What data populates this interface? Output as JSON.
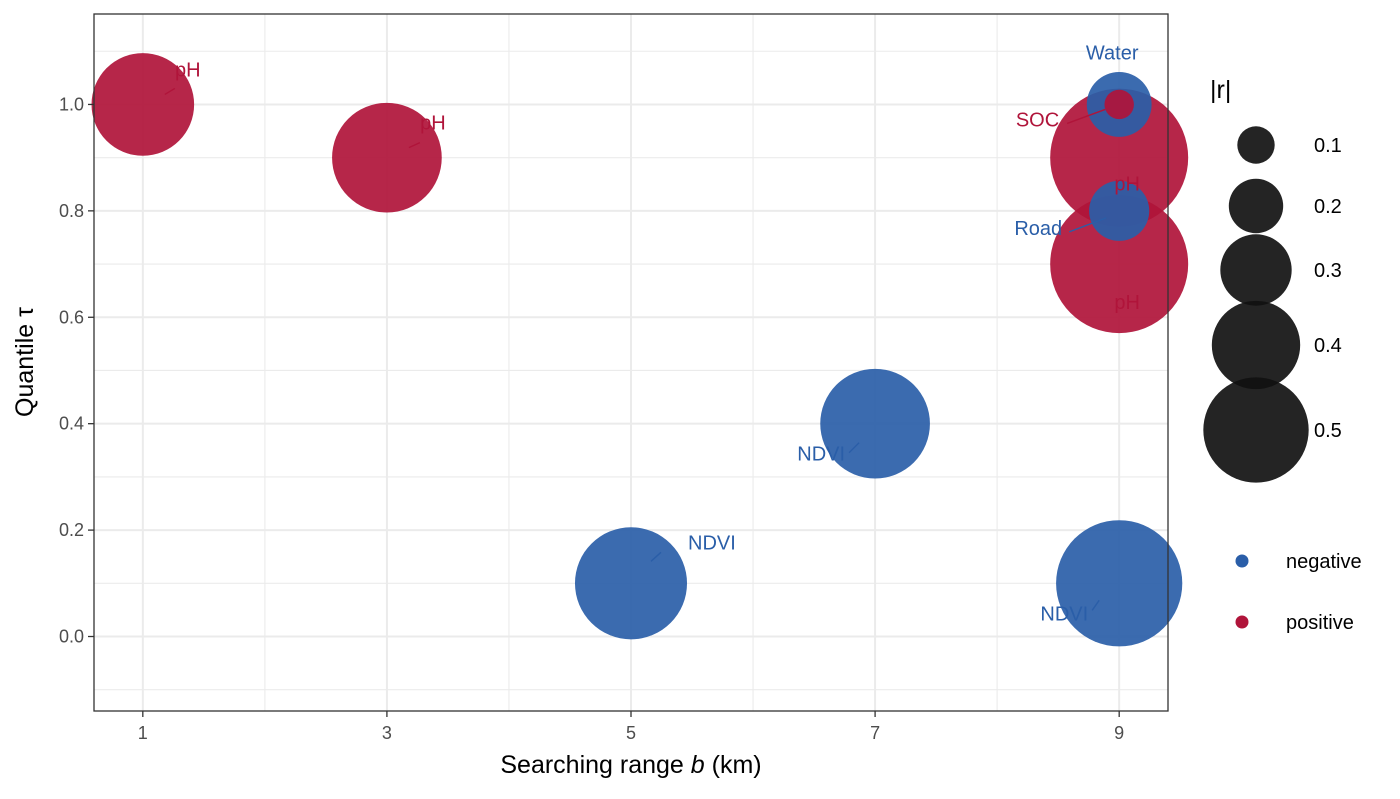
{
  "chart_data": {
    "type": "scatter",
    "xlabel_prefix": "Searching range",
    "xlabel_var": "b",
    "xlabel_suffix": "(km)",
    "ylabel": "Quantile τ",
    "x_ticks": [
      "1",
      "3",
      "5",
      "7",
      "9"
    ],
    "y_ticks": [
      "0.0",
      "0.2",
      "0.4",
      "0.6",
      "0.8",
      "1.0"
    ],
    "xlim": [
      0.6,
      9.4
    ],
    "ylim": [
      -0.14,
      1.17
    ],
    "grid": true,
    "colors": {
      "negative": "#2a5ea8",
      "positive": "#b0143a"
    },
    "size_legend": {
      "title": "|r|",
      "values": [
        0.1,
        0.2,
        0.3,
        0.4,
        0.5
      ],
      "labels": [
        "0.1",
        "0.2",
        "0.3",
        "0.4",
        "0.5"
      ]
    },
    "color_legend": {
      "items": [
        {
          "key": "negative",
          "label": "negative"
        },
        {
          "key": "positive",
          "label": "positive"
        }
      ]
    },
    "points": [
      {
        "x": 1,
        "y": 1.0,
        "r": 0.35,
        "sign": "positive",
        "label": "pH"
      },
      {
        "x": 3,
        "y": 0.9,
        "r": 0.38,
        "sign": "positive",
        "label": "pH"
      },
      {
        "x": 5,
        "y": 0.1,
        "r": 0.39,
        "sign": "negative",
        "label": "NDVI"
      },
      {
        "x": 7,
        "y": 0.4,
        "r": 0.38,
        "sign": "negative",
        "label": "NDVI"
      },
      {
        "x": 9,
        "y": 1.0,
        "r": 0.19,
        "sign": "negative",
        "label": "Water"
      },
      {
        "x": 9,
        "y": 1.0,
        "r": 0.04,
        "sign": "positive",
        "label": "SOC"
      },
      {
        "x": 9,
        "y": 0.9,
        "r": 0.5,
        "sign": "positive",
        "label": "pH"
      },
      {
        "x": 9,
        "y": 0.8,
        "r": 0.17,
        "sign": "negative",
        "label": "Road"
      },
      {
        "x": 9,
        "y": 0.7,
        "r": 0.5,
        "sign": "positive",
        "label": "pH"
      },
      {
        "x": 9,
        "y": 0.1,
        "r": 0.45,
        "sign": "negative",
        "label": "NDVI"
      }
    ]
  }
}
